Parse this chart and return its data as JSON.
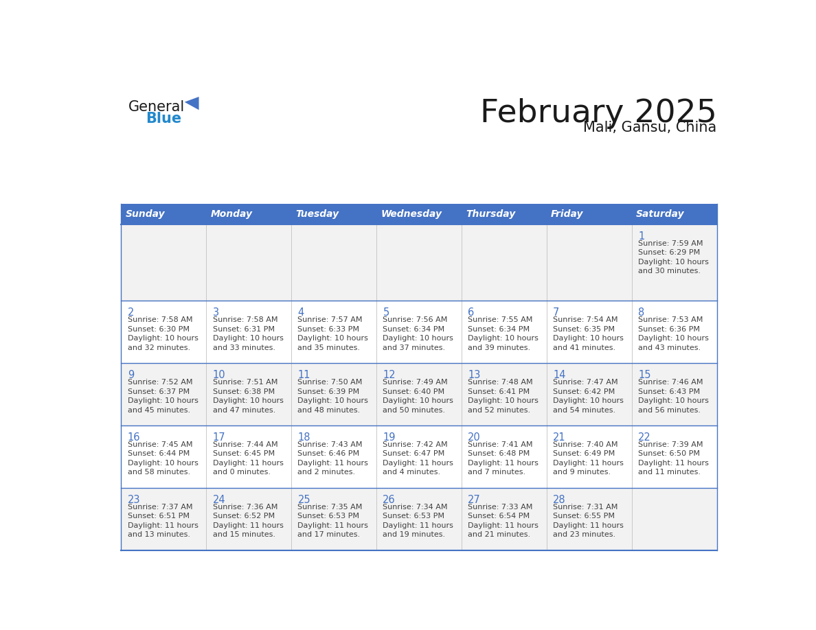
{
  "title": "February 2025",
  "subtitle": "Mali, Gansu, China",
  "days_of_week": [
    "Sunday",
    "Monday",
    "Tuesday",
    "Wednesday",
    "Thursday",
    "Friday",
    "Saturday"
  ],
  "header_bg": "#4472C4",
  "header_text_color": "#FFFFFF",
  "row_bg": [
    "#F2F2F2",
    "#FFFFFF",
    "#F2F2F2",
    "#FFFFFF",
    "#F2F2F2"
  ],
  "border_color": "#4472C4",
  "cell_divider_color": "#C0C0C0",
  "title_color": "#1a1a1a",
  "subtitle_color": "#1a1a1a",
  "day_num_color": "#4472C4",
  "text_color": "#404040",
  "calendar_data": [
    [
      null,
      null,
      null,
      null,
      null,
      null,
      {
        "day": 1,
        "sunrise": "7:59 AM",
        "sunset": "6:29 PM",
        "daylight": "10 hours and 30 minutes."
      }
    ],
    [
      {
        "day": 2,
        "sunrise": "7:58 AM",
        "sunset": "6:30 PM",
        "daylight": "10 hours and 32 minutes."
      },
      {
        "day": 3,
        "sunrise": "7:58 AM",
        "sunset": "6:31 PM",
        "daylight": "10 hours and 33 minutes."
      },
      {
        "day": 4,
        "sunrise": "7:57 AM",
        "sunset": "6:33 PM",
        "daylight": "10 hours and 35 minutes."
      },
      {
        "day": 5,
        "sunrise": "7:56 AM",
        "sunset": "6:34 PM",
        "daylight": "10 hours and 37 minutes."
      },
      {
        "day": 6,
        "sunrise": "7:55 AM",
        "sunset": "6:34 PM",
        "daylight": "10 hours and 39 minutes."
      },
      {
        "day": 7,
        "sunrise": "7:54 AM",
        "sunset": "6:35 PM",
        "daylight": "10 hours and 41 minutes."
      },
      {
        "day": 8,
        "sunrise": "7:53 AM",
        "sunset": "6:36 PM",
        "daylight": "10 hours and 43 minutes."
      }
    ],
    [
      {
        "day": 9,
        "sunrise": "7:52 AM",
        "sunset": "6:37 PM",
        "daylight": "10 hours and 45 minutes."
      },
      {
        "day": 10,
        "sunrise": "7:51 AM",
        "sunset": "6:38 PM",
        "daylight": "10 hours and 47 minutes."
      },
      {
        "day": 11,
        "sunrise": "7:50 AM",
        "sunset": "6:39 PM",
        "daylight": "10 hours and 48 minutes."
      },
      {
        "day": 12,
        "sunrise": "7:49 AM",
        "sunset": "6:40 PM",
        "daylight": "10 hours and 50 minutes."
      },
      {
        "day": 13,
        "sunrise": "7:48 AM",
        "sunset": "6:41 PM",
        "daylight": "10 hours and 52 minutes."
      },
      {
        "day": 14,
        "sunrise": "7:47 AM",
        "sunset": "6:42 PM",
        "daylight": "10 hours and 54 minutes."
      },
      {
        "day": 15,
        "sunrise": "7:46 AM",
        "sunset": "6:43 PM",
        "daylight": "10 hours and 56 minutes."
      }
    ],
    [
      {
        "day": 16,
        "sunrise": "7:45 AM",
        "sunset": "6:44 PM",
        "daylight": "10 hours and 58 minutes."
      },
      {
        "day": 17,
        "sunrise": "7:44 AM",
        "sunset": "6:45 PM",
        "daylight": "11 hours and 0 minutes."
      },
      {
        "day": 18,
        "sunrise": "7:43 AM",
        "sunset": "6:46 PM",
        "daylight": "11 hours and 2 minutes."
      },
      {
        "day": 19,
        "sunrise": "7:42 AM",
        "sunset": "6:47 PM",
        "daylight": "11 hours and 4 minutes."
      },
      {
        "day": 20,
        "sunrise": "7:41 AM",
        "sunset": "6:48 PM",
        "daylight": "11 hours and 7 minutes."
      },
      {
        "day": 21,
        "sunrise": "7:40 AM",
        "sunset": "6:49 PM",
        "daylight": "11 hours and 9 minutes."
      },
      {
        "day": 22,
        "sunrise": "7:39 AM",
        "sunset": "6:50 PM",
        "daylight": "11 hours and 11 minutes."
      }
    ],
    [
      {
        "day": 23,
        "sunrise": "7:37 AM",
        "sunset": "6:51 PM",
        "daylight": "11 hours and 13 minutes."
      },
      {
        "day": 24,
        "sunrise": "7:36 AM",
        "sunset": "6:52 PM",
        "daylight": "11 hours and 15 minutes."
      },
      {
        "day": 25,
        "sunrise": "7:35 AM",
        "sunset": "6:53 PM",
        "daylight": "11 hours and 17 minutes."
      },
      {
        "day": 26,
        "sunrise": "7:34 AM",
        "sunset": "6:53 PM",
        "daylight": "11 hours and 19 minutes."
      },
      {
        "day": 27,
        "sunrise": "7:33 AM",
        "sunset": "6:54 PM",
        "daylight": "11 hours and 21 minutes."
      },
      {
        "day": 28,
        "sunrise": "7:31 AM",
        "sunset": "6:55 PM",
        "daylight": "11 hours and 23 minutes."
      },
      null
    ]
  ],
  "logo_text_general": "General",
  "logo_text_blue": "Blue",
  "logo_triangle_color": "#4472C4",
  "logo_general_color": "#1a1a1a",
  "logo_blue_color": "#2288CC"
}
